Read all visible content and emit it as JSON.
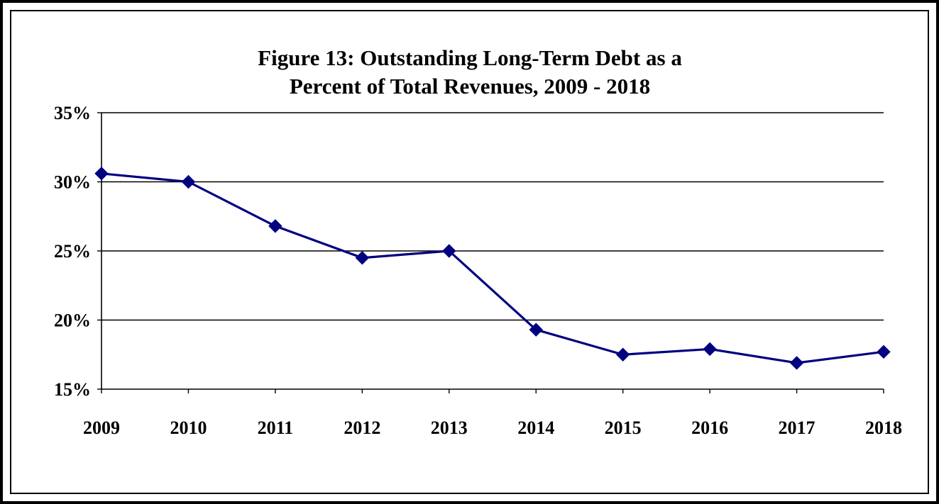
{
  "chart_data": {
    "type": "line",
    "title": [
      "Figure 13:  Outstanding Long-Term Debt as a",
      "Percent of Total Revenues, 2009 - 2018"
    ],
    "xlabel": "",
    "ylabel": "",
    "categories": [
      "2009",
      "2010",
      "2011",
      "2012",
      "2013",
      "2014",
      "2015",
      "2016",
      "2017",
      "2018"
    ],
    "series": [
      {
        "values": [
          30.6,
          30.0,
          26.8,
          24.5,
          25.0,
          19.3,
          17.5,
          17.9,
          16.9,
          17.7
        ]
      }
    ],
    "ylim": [
      15,
      35
    ],
    "yticks": [
      15,
      20,
      25,
      30,
      35
    ],
    "ytick_labels": [
      "15%",
      "20%",
      "25%",
      "30%",
      "35%"
    ],
    "grid": true,
    "legend": "none",
    "line_color": "#000080",
    "marker": "diamond"
  }
}
